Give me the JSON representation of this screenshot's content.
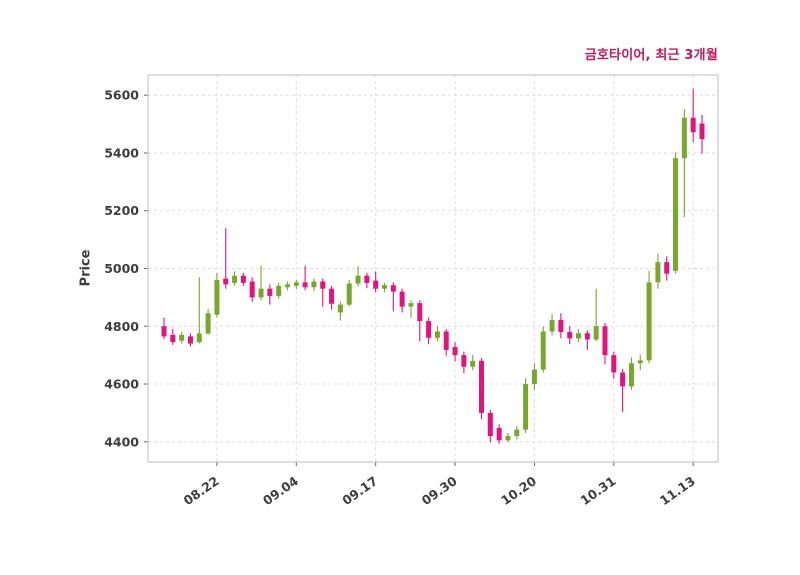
{
  "chart_data": {
    "type": "candlestick",
    "title": "금호타이어, 최근 3개월",
    "ylabel": "Price",
    "xlabel": "",
    "ylim": [
      4330,
      5670
    ],
    "yticks": [
      4400,
      4600,
      4800,
      5000,
      5200,
      5400,
      5600
    ],
    "xticks": [
      {
        "index": 6,
        "label": "08.22"
      },
      {
        "index": 15,
        "label": "09.04"
      },
      {
        "index": 24,
        "label": "09.17"
      },
      {
        "index": 33,
        "label": "09.30"
      },
      {
        "index": 42,
        "label": "10.20"
      },
      {
        "index": 51,
        "label": "10.31"
      },
      {
        "index": 60,
        "label": "11.13"
      }
    ],
    "grid": true,
    "grid_color": "#dcdce6",
    "border_color": "#c8c8c8",
    "up_color": "#77a82c",
    "down_color": "#e5127d",
    "title_color": "#c2185b",
    "tick_color": "#3d3d3d",
    "ohlc_order": "open,high,low,close",
    "candles": [
      [
        4800,
        4830,
        4755,
        4765
      ],
      [
        4770,
        4790,
        4735,
        4745
      ],
      [
        4750,
        4780,
        4740,
        4770
      ],
      [
        4765,
        4775,
        4730,
        4740
      ],
      [
        4745,
        4970,
        4740,
        4775
      ],
      [
        4775,
        4860,
        4770,
        4845
      ],
      [
        4840,
        4985,
        4830,
        4960
      ],
      [
        4965,
        5140,
        4930,
        4945
      ],
      [
        4950,
        4990,
        4940,
        4975
      ],
      [
        4975,
        4985,
        4940,
        4950
      ],
      [
        4955,
        4970,
        4885,
        4900
      ],
      [
        4900,
        5010,
        4890,
        4930
      ],
      [
        4930,
        4945,
        4875,
        4905
      ],
      [
        4905,
        4950,
        4895,
        4940
      ],
      [
        4935,
        4955,
        4925,
        4945
      ],
      [
        4940,
        4960,
        4928,
        4952
      ],
      [
        4952,
        5010,
        4925,
        4935
      ],
      [
        4935,
        4965,
        4922,
        4955
      ],
      [
        4955,
        4965,
        4868,
        4930
      ],
      [
        4930,
        4940,
        4858,
        4878
      ],
      [
        4848,
        4885,
        4820,
        4875
      ],
      [
        4875,
        4960,
        4868,
        4948
      ],
      [
        4948,
        5008,
        4938,
        4975
      ],
      [
        4975,
        4985,
        4932,
        4950
      ],
      [
        4958,
        4990,
        4918,
        4930
      ],
      [
        4930,
        4950,
        4918,
        4942
      ],
      [
        4942,
        4952,
        4852,
        4920
      ],
      [
        4920,
        4930,
        4848,
        4868
      ],
      [
        4868,
        4890,
        4828,
        4880
      ],
      [
        4880,
        4890,
        4748,
        4818
      ],
      [
        4818,
        4830,
        4738,
        4760
      ],
      [
        4760,
        4800,
        4748,
        4782
      ],
      [
        4782,
        4790,
        4698,
        4718
      ],
      [
        4728,
        4745,
        4678,
        4700
      ],
      [
        4700,
        4712,
        4638,
        4660
      ],
      [
        4660,
        4700,
        4648,
        4680
      ],
      [
        4680,
        4690,
        4478,
        4500
      ],
      [
        4500,
        4510,
        4398,
        4420
      ],
      [
        4448,
        4460,
        4393,
        4405
      ],
      [
        4405,
        4430,
        4398,
        4420
      ],
      [
        4420,
        4455,
        4408,
        4442
      ],
      [
        4442,
        4620,
        4430,
        4600
      ],
      [
        4600,
        4672,
        4578,
        4650
      ],
      [
        4650,
        4800,
        4640,
        4782
      ],
      [
        4782,
        4842,
        4768,
        4822
      ],
      [
        4822,
        4845,
        4758,
        4780
      ],
      [
        4780,
        4800,
        4738,
        4758
      ],
      [
        4758,
        4790,
        4744,
        4776
      ],
      [
        4776,
        4786,
        4718,
        4754
      ],
      [
        4754,
        4930,
        4748,
        4800
      ],
      [
        4800,
        4812,
        4668,
        4700
      ],
      [
        4700,
        4712,
        4618,
        4640
      ],
      [
        4640,
        4652,
        4502,
        4592
      ],
      [
        4592,
        4692,
        4580,
        4672
      ],
      [
        4672,
        4702,
        4648,
        4682
      ],
      [
        4682,
        4992,
        4672,
        4952
      ],
      [
        4952,
        5052,
        4930,
        5022
      ],
      [
        5022,
        5042,
        4958,
        4982
      ],
      [
        4992,
        5402,
        4982,
        5382
      ],
      [
        5382,
        5552,
        5178,
        5522
      ],
      [
        5522,
        5622,
        5438,
        5472
      ],
      [
        5502,
        5532,
        5398,
        5448
      ]
    ]
  }
}
